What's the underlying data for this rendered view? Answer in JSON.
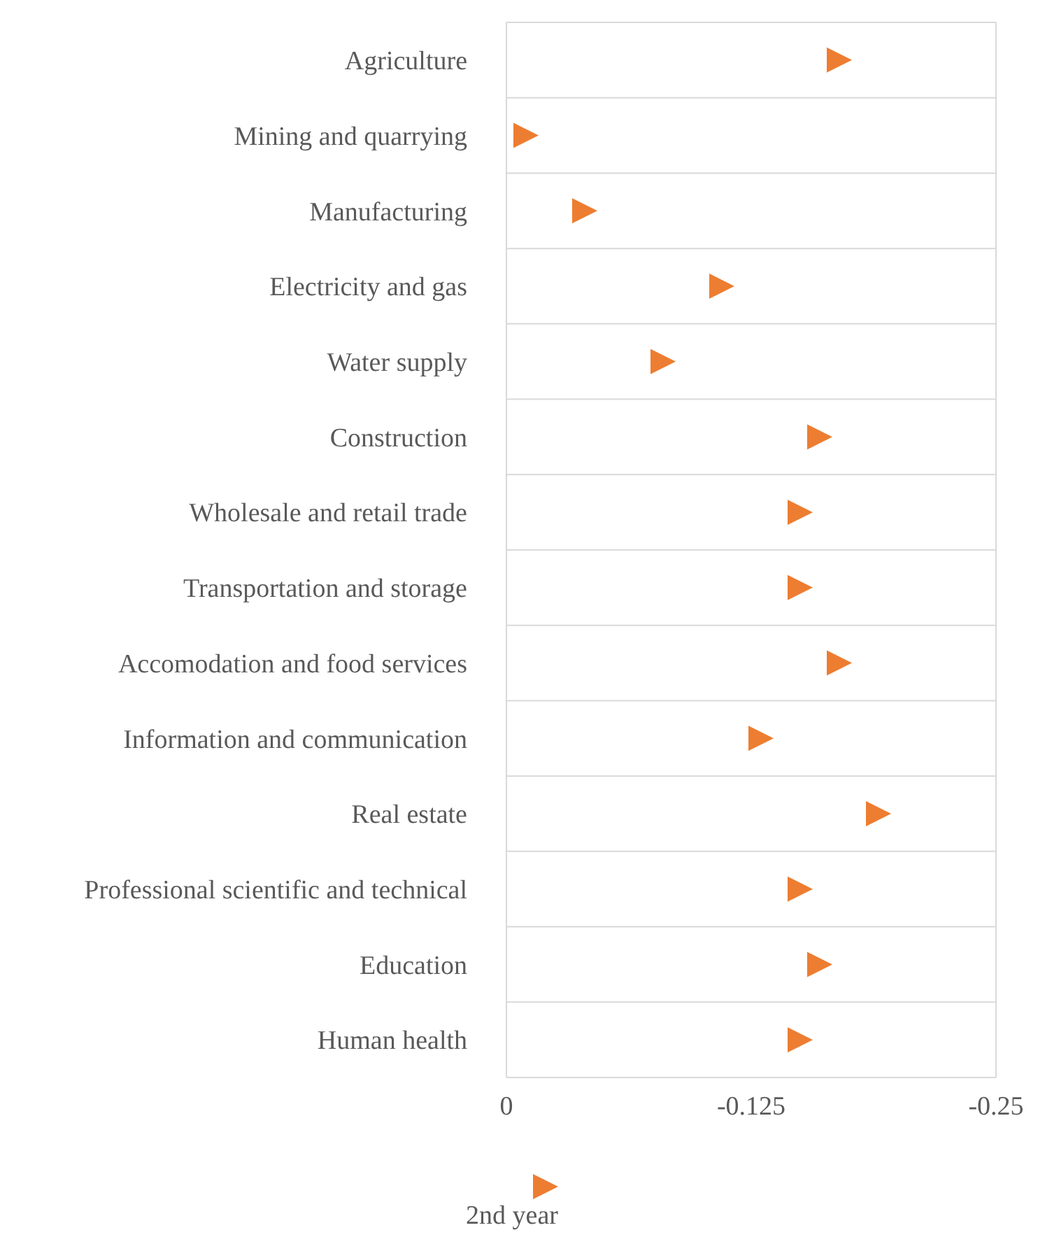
{
  "chart_data": {
    "type": "scatter",
    "orientation": "horizontal",
    "categories": [
      "Agriculture",
      "Mining and quarrying ",
      "Manufacturing",
      "Electricity and gas",
      "Water supply",
      "Construction",
      "Wholesale and retail trade",
      "Transportation and storage",
      "Accomodation and food services",
      "Information and communication",
      "Real estate",
      "Professional scientific and technical",
      "Education",
      "Human health"
    ],
    "series": [
      {
        "name": "2nd year",
        "color": "#ed7d31",
        "values": [
          -0.17,
          -0.01,
          -0.04,
          -0.11,
          -0.08,
          -0.16,
          -0.15,
          -0.15,
          -0.17,
          -0.13,
          -0.19,
          -0.15,
          -0.16,
          -0.15
        ]
      }
    ],
    "xlim": [
      0,
      -0.25
    ],
    "xticks": [
      0,
      -0.125,
      -0.25
    ],
    "grid": "y",
    "legend": "bottom",
    "marker": "triangle"
  }
}
